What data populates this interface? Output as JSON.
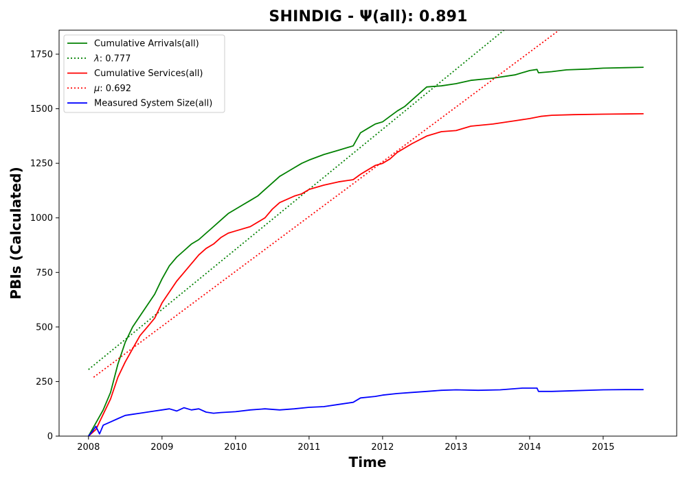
{
  "chart_data": {
    "type": "line",
    "title": "SHINDIG -  Ψ(all): 0.891",
    "xlabel": "Time",
    "ylabel": "PBIs (Calculated)",
    "xlim": [
      2007.6,
      2016.0
    ],
    "ylim": [
      0,
      1860
    ],
    "x_ticks": [
      2008,
      2009,
      2010,
      2011,
      2012,
      2013,
      2014,
      2015
    ],
    "x_tick_labels": [
      "2008",
      "2009",
      "2010",
      "2011",
      "2012",
      "2013",
      "2014",
      "2015"
    ],
    "y_ticks": [
      0,
      250,
      500,
      750,
      1000,
      1250,
      1500,
      1750
    ],
    "y_tick_labels": [
      "0",
      "250",
      "500",
      "750",
      "1000",
      "1250",
      "1500",
      "1750"
    ],
    "grid": false,
    "legend_position": "top-left",
    "series": [
      {
        "name": "Cumulative Arrivals(all)",
        "color": "#008000",
        "style": "solid",
        "x": [
          2008.0,
          2008.1,
          2008.2,
          2008.3,
          2008.4,
          2008.5,
          2008.6,
          2008.7,
          2008.8,
          2008.9,
          2009.0,
          2009.1,
          2009.2,
          2009.3,
          2009.4,
          2009.5,
          2009.6,
          2009.7,
          2009.8,
          2009.9,
          2010.0,
          2010.1,
          2010.2,
          2010.3,
          2010.4,
          2010.5,
          2010.6,
          2010.7,
          2010.8,
          2010.9,
          2011.0,
          2011.2,
          2011.4,
          2011.6,
          2011.65,
          2011.7,
          2011.8,
          2011.9,
          2012.0,
          2012.1,
          2012.2,
          2012.3,
          2012.4,
          2012.5,
          2012.6,
          2012.8,
          2013.0,
          2013.2,
          2013.5,
          2013.8,
          2014.0,
          2014.1,
          2014.12,
          2014.3,
          2014.5,
          2014.8,
          2015.0,
          2015.3,
          2015.55
        ],
        "values": [
          0,
          60,
          120,
          200,
          330,
          430,
          500,
          550,
          600,
          650,
          720,
          780,
          820,
          850,
          880,
          900,
          930,
          960,
          990,
          1020,
          1040,
          1060,
          1080,
          1100,
          1130,
          1160,
          1190,
          1210,
          1230,
          1250,
          1265,
          1290,
          1310,
          1330,
          1360,
          1390,
          1410,
          1430,
          1440,
          1465,
          1490,
          1510,
          1540,
          1570,
          1600,
          1605,
          1615,
          1630,
          1640,
          1655,
          1675,
          1680,
          1665,
          1670,
          1678,
          1682,
          1686,
          1688,
          1690
        ]
      },
      {
        "name": "λ: 0.777",
        "color": "#008000",
        "style": "dotted",
        "x": [
          2008.0,
          2013.65
        ],
        "values": [
          305,
          1860
        ]
      },
      {
        "name": "Cumulative Services(all)",
        "color": "#ff0000",
        "style": "solid",
        "x": [
          2008.0,
          2008.1,
          2008.2,
          2008.3,
          2008.4,
          2008.5,
          2008.6,
          2008.7,
          2008.8,
          2008.9,
          2009.0,
          2009.1,
          2009.2,
          2009.3,
          2009.4,
          2009.5,
          2009.6,
          2009.7,
          2009.8,
          2009.9,
          2010.0,
          2010.2,
          2010.4,
          2010.5,
          2010.6,
          2010.8,
          2010.9,
          2011.0,
          2011.2,
          2011.4,
          2011.6,
          2011.7,
          2011.8,
          2011.9,
          2012.0,
          2012.1,
          2012.2,
          2012.4,
          2012.6,
          2012.8,
          2013.0,
          2013.2,
          2013.5,
          2013.8,
          2014.0,
          2014.15,
          2014.3,
          2014.6,
          2015.0,
          2015.3,
          2015.55
        ],
        "values": [
          0,
          30,
          100,
          170,
          270,
          340,
          400,
          460,
          500,
          540,
          610,
          660,
          710,
          750,
          790,
          830,
          860,
          880,
          910,
          930,
          940,
          960,
          1000,
          1040,
          1070,
          1100,
          1110,
          1130,
          1150,
          1165,
          1175,
          1200,
          1220,
          1240,
          1250,
          1270,
          1300,
          1340,
          1375,
          1395,
          1400,
          1420,
          1430,
          1445,
          1455,
          1465,
          1470,
          1473,
          1475,
          1476,
          1477
        ]
      },
      {
        "name": "μ: 0.692",
        "color": "#ff0000",
        "style": "dotted",
        "x": [
          2008.07,
          2014.4
        ],
        "values": [
          270,
          1860
        ]
      },
      {
        "name": "Measured System Size(all)",
        "color": "#0000ff",
        "style": "solid",
        "x": [
          2008.0,
          2008.05,
          2008.1,
          2008.15,
          2008.2,
          2008.3,
          2008.4,
          2008.5,
          2008.6,
          2008.7,
          2008.8,
          2008.9,
          2009.0,
          2009.1,
          2009.2,
          2009.3,
          2009.4,
          2009.5,
          2009.6,
          2009.7,
          2009.8,
          2009.9,
          2010.0,
          2010.2,
          2010.4,
          2010.6,
          2010.8,
          2011.0,
          2011.2,
          2011.4,
          2011.6,
          2011.7,
          2011.9,
          2012.0,
          2012.2,
          2012.4,
          2012.6,
          2012.8,
          2013.0,
          2013.3,
          2013.6,
          2013.9,
          2014.1,
          2014.12,
          2014.3,
          2014.6,
          2015.0,
          2015.3,
          2015.55
        ],
        "values": [
          0,
          20,
          45,
          10,
          50,
          65,
          80,
          95,
          100,
          105,
          110,
          115,
          120,
          125,
          115,
          130,
          120,
          125,
          110,
          105,
          108,
          110,
          112,
          120,
          125,
          120,
          125,
          132,
          135,
          145,
          155,
          175,
          182,
          188,
          195,
          200,
          205,
          210,
          212,
          210,
          212,
          220,
          220,
          205,
          205,
          208,
          212,
          213,
          213
        ]
      }
    ]
  }
}
